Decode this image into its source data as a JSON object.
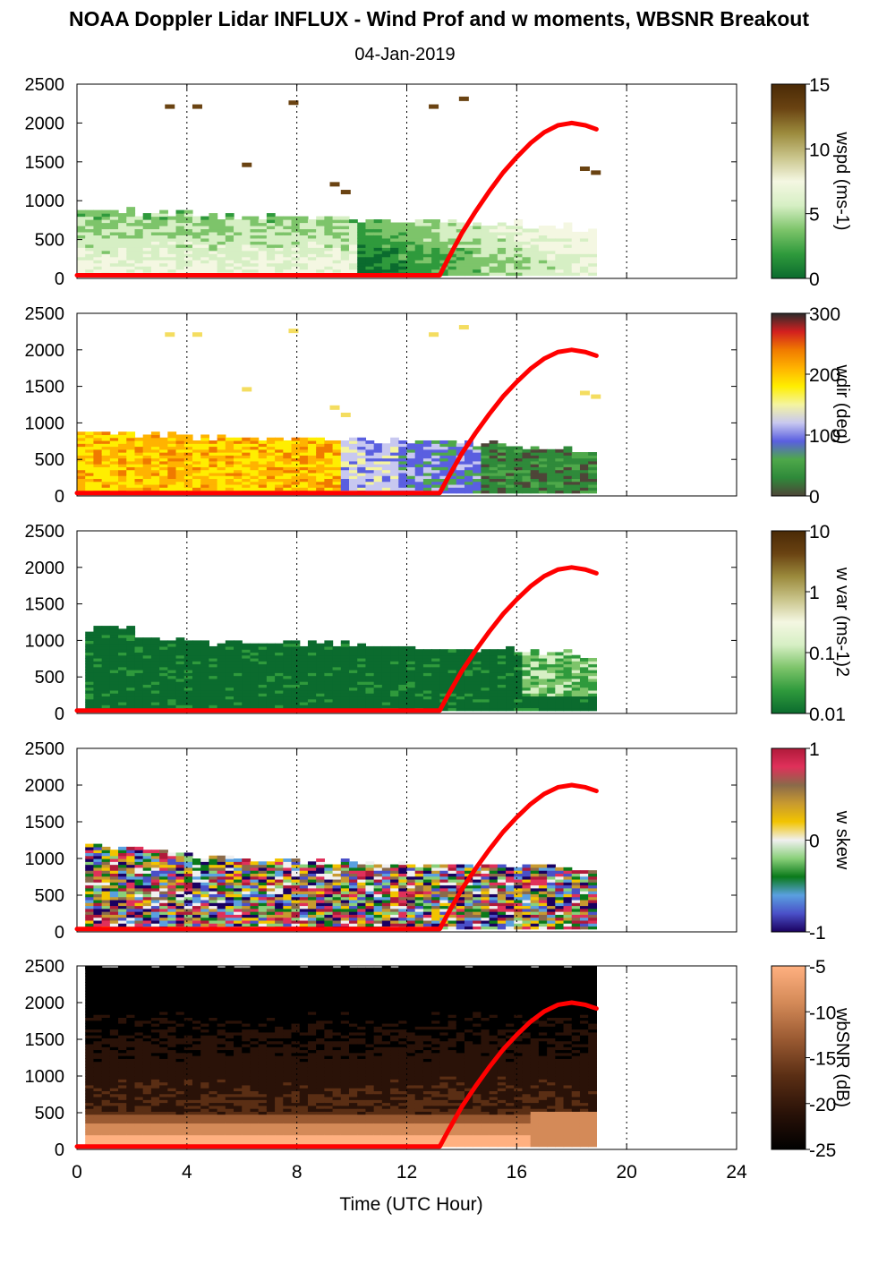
{
  "header": {
    "title": "NOAA Doppler Lidar INFLUX - Wind Prof and w moments, WBSNR Breakout",
    "date": "04-Jan-2019"
  },
  "chart_data": {
    "type": "heatmap",
    "shared_x": {
      "label": "Time (UTC Hour)",
      "range": [
        0,
        24
      ],
      "ticks": [
        0,
        4,
        8,
        12,
        16,
        20,
        24
      ],
      "grid": "dotted vertical lines at 4, 8, 12, 16, 20, 24"
    },
    "shared_y": {
      "range": [
        0,
        2500
      ],
      "ticks": [
        0,
        500,
        1000,
        1500,
        2000,
        2500
      ]
    },
    "overlay_line": {
      "color": "#ff0000",
      "points": [
        [
          0,
          40
        ],
        [
          13.2,
          40
        ],
        [
          13.5,
          250
        ],
        [
          14,
          580
        ],
        [
          14.5,
          860
        ],
        [
          15,
          1120
        ],
        [
          15.5,
          1360
        ],
        [
          16,
          1560
        ],
        [
          16.5,
          1740
        ],
        [
          17,
          1880
        ],
        [
          17.5,
          1970
        ],
        [
          18,
          2000
        ],
        [
          18.5,
          1970
        ],
        [
          18.9,
          1920
        ]
      ]
    },
    "panels": [
      {
        "colorbar_label": "wspd (ms-1)",
        "cbar_ticks": [
          "15",
          "10",
          "5",
          "0"
        ],
        "cmap": [
          "#0b6b2e",
          "#2f9a3c",
          "#7dc46a",
          "#d6efc4",
          "#f4f7e2",
          "#c9c48a",
          "#9b8a3c",
          "#6a4312",
          "#4a2a06"
        ],
        "profile_top_m": [
          850,
          820,
          780,
          780,
          760,
          740,
          720,
          700,
          650,
          600,
          560
        ]
      },
      {
        "colorbar_label": "wdir (deg)",
        "cbar_ticks": [
          "300",
          "200",
          "100",
          "0"
        ],
        "cmap": [
          "#4e4538",
          "#2f8a3a",
          "#4ea84a",
          "#5a5fe0",
          "#c8c8f0",
          "#f4f4a0",
          "#ffee00",
          "#ffb300",
          "#f07a00",
          "#d21f1f",
          "#2c2c2c"
        ],
        "profile_top_m": [
          850,
          820,
          780,
          780,
          760,
          740,
          720,
          700,
          650,
          600,
          560
        ]
      },
      {
        "colorbar_label": "w var (ms-1)2",
        "cbar_ticks": [
          "10",
          "1",
          "0.1",
          "0.01"
        ],
        "cmap": [
          "#0b6b2e",
          "#2f9a3c",
          "#7dc46a",
          "#d6efc4",
          "#f4f7e2",
          "#c9c48a",
          "#9b8a3c",
          "#6a4312",
          "#4a2a06"
        ],
        "profile_top_m": [
          1150,
          1000,
          950,
          960,
          940,
          900,
          880,
          860,
          820,
          780,
          620
        ]
      },
      {
        "colorbar_label": "w skew",
        "cbar_ticks": [
          "1",
          "0",
          "-1"
        ],
        "cmap": [
          "#1a0060",
          "#4a50c8",
          "#5aa0e0",
          "#0a7a1a",
          "#8ad07a",
          "#f0f0f0",
          "#f2c400",
          "#c89a30",
          "#8a6a4a",
          "#e0305a",
          "#b01a3a"
        ],
        "profile_top_m": [
          1150,
          1100,
          1000,
          960,
          940,
          920,
          900,
          880,
          860,
          820,
          640
        ]
      },
      {
        "colorbar_label": "wbSNR (dB)",
        "cbar_ticks": [
          "-5",
          "-10",
          "-15",
          "-20",
          "-25"
        ],
        "cmap": [
          "#000000",
          "#2a1208",
          "#5a2e14",
          "#9a5a32",
          "#d48a58",
          "#ffb080"
        ],
        "profile_top_m": [
          2500,
          2500,
          2500,
          2500,
          2500,
          2500,
          2500,
          2500,
          2500,
          2500,
          2500
        ]
      }
    ]
  }
}
